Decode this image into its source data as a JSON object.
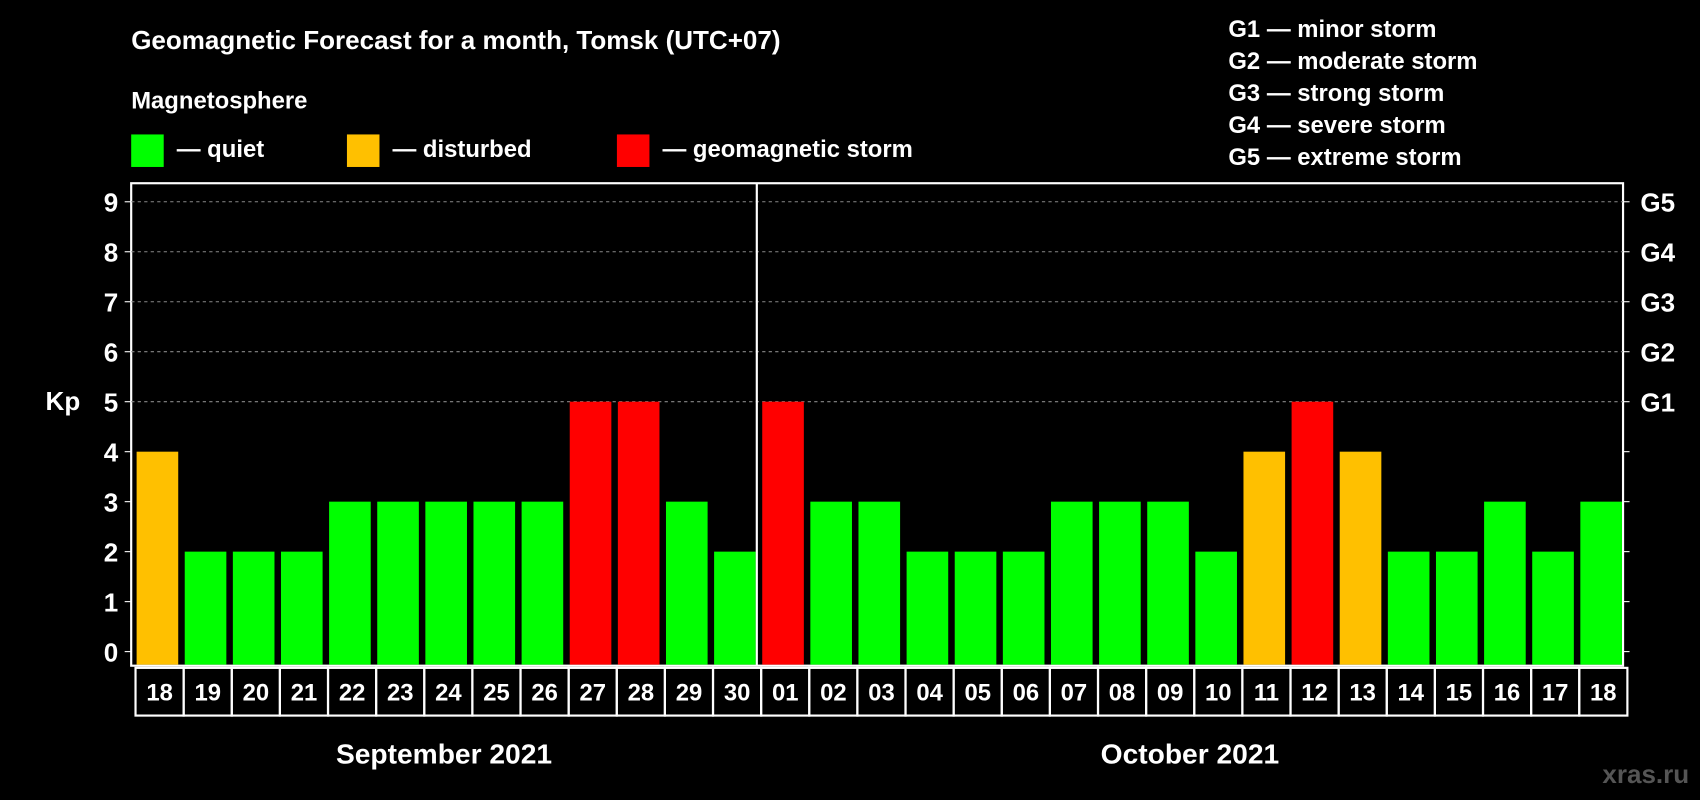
{
  "chart_data": {
    "type": "bar",
    "title": "Geomagnetic Forecast for a month, Tomsk (UTC+07)",
    "subtitle": "Magnetosphere",
    "ylabel": "Kp",
    "ylim": [
      0,
      9
    ],
    "yticks": [
      "0",
      "1",
      "2",
      "3",
      "4",
      "5",
      "6",
      "7",
      "8",
      "9"
    ],
    "right_ticks": [
      {
        "kp": 5,
        "label": "G1"
      },
      {
        "kp": 6,
        "label": "G2"
      },
      {
        "kp": 7,
        "label": "G3"
      },
      {
        "kp": 8,
        "label": "G4"
      },
      {
        "kp": 9,
        "label": "G5"
      }
    ],
    "grid": true,
    "legend": [
      {
        "label": "— quiet",
        "color": "#00ff00"
      },
      {
        "label": "— disturbed",
        "color": "#ffc000"
      },
      {
        "label": "— geomagnetic storm",
        "color": "#ff0000"
      }
    ],
    "storm_scale": [
      "G1 — minor storm",
      "G2 — moderate storm",
      "G3 — strong storm",
      "G4 — severe storm",
      "G5 — extreme storm"
    ],
    "months": [
      {
        "label": "September 2021",
        "days": [
          "18",
          "19",
          "20",
          "21",
          "22",
          "23",
          "24",
          "25",
          "26",
          "27",
          "28",
          "29",
          "30"
        ],
        "values": [
          4,
          2,
          2,
          2,
          3,
          3,
          3,
          3,
          3,
          5,
          5,
          3,
          2
        ]
      },
      {
        "label": "October 2021",
        "days": [
          "01",
          "02",
          "03",
          "04",
          "05",
          "06",
          "07",
          "08",
          "09",
          "10",
          "11",
          "12",
          "13",
          "14",
          "15",
          "16",
          "17",
          "18"
        ],
        "values": [
          5,
          3,
          3,
          2,
          2,
          2,
          3,
          3,
          3,
          2,
          4,
          5,
          4,
          2,
          2,
          3,
          2,
          3
        ]
      }
    ],
    "colors": {
      "quiet": "#00ff00",
      "disturbed": "#ffc000",
      "storm": "#ff0000"
    }
  },
  "watermark": "xras.ru"
}
